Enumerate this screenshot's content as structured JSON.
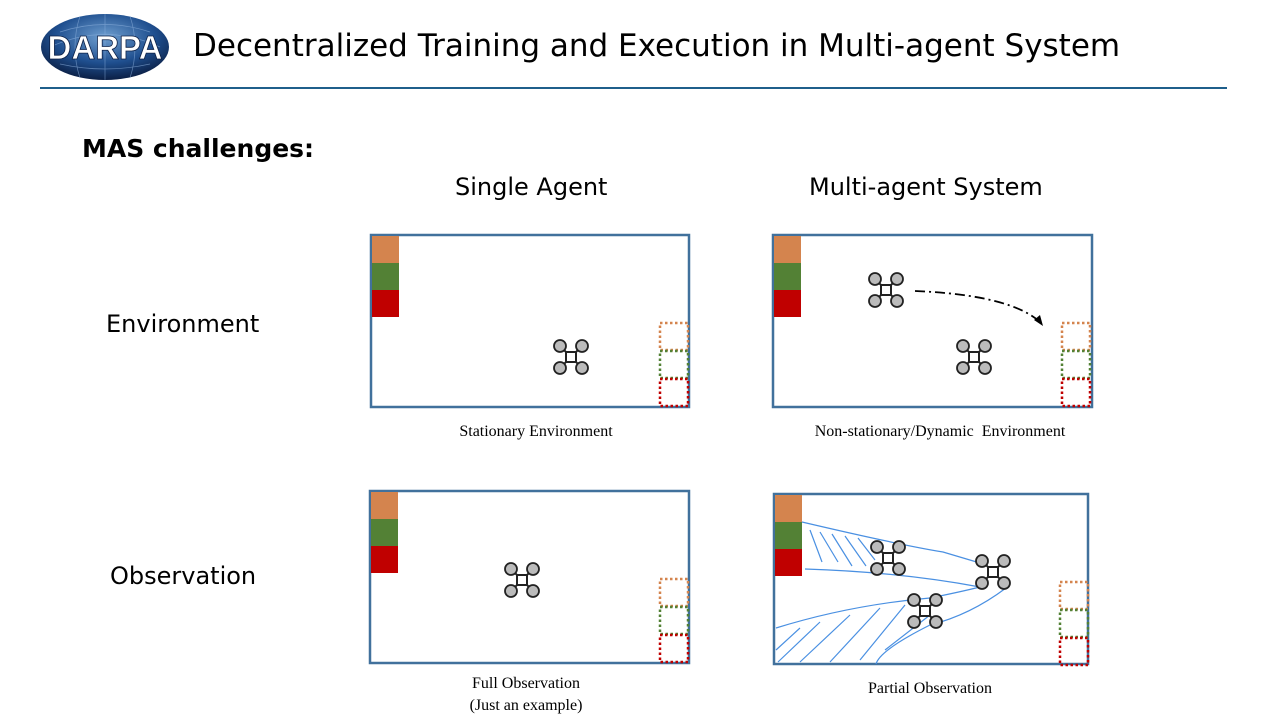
{
  "logo": {
    "text": "DARPA"
  },
  "header": {
    "title": "Decentralized Training and Execution in Multi-agent System"
  },
  "section": {
    "heading": "MAS challenges:"
  },
  "columns": [
    "Single Agent",
    "Multi-agent System"
  ],
  "rows": [
    "Environment",
    "Observation"
  ],
  "captions": {
    "stationary": "Stationary Environment",
    "dynamic": "Non-stationary/Dynamic  Environment",
    "full": "Full Observation",
    "full_note": "(Just an example)",
    "partial": "Partial Observation"
  },
  "colors": {
    "orange": "#D4844E",
    "green": "#538135",
    "red": "#C00000",
    "frame": "#41719C",
    "fov": "#4a90e2",
    "rule": "#1f5f8b"
  }
}
